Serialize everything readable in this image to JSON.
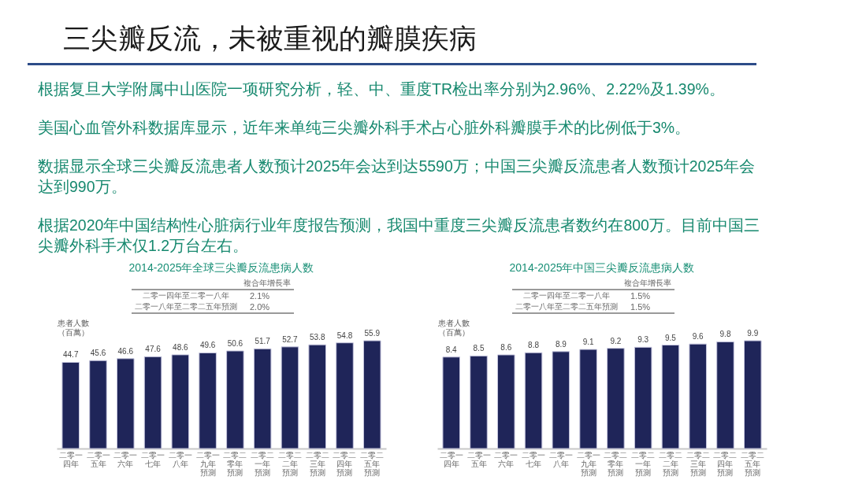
{
  "chart_data": [
    {
      "type": "other",
      "title": "三尖瓣反流，未被重视的瓣膜疾病",
      "annotations": [
        "根据复旦大学附属中山医院一项研究分析，轻、中、重度TR检出率分别为2.96%、2.22%及1.39%。",
        "美国心血管外科数据库显示，近年来单纯三尖瓣外科手术占心脏外科瓣膜手术的比例低于3%。",
        "数据显示全球三尖瓣反流患者人数预计2025年会达到达5590万；中国三尖瓣反流患者人数预计2025年会达到990万。",
        "根据2020年中国结构性心脏病行业年度报告预测，我国中重度三尖瓣反流患者数约在800万。目前中国三尖瓣外科手术仅1.2万台左右。"
      ]
    },
    {
      "type": "bar",
      "title": "2014-2025年全球三尖瓣反流患病人数",
      "ylabel": "患者人數（百萬）",
      "categories": [
        "二零一四年",
        "二零一五年",
        "二零一六年",
        "二零一七年",
        "二零一八年",
        "二零一九年預測",
        "二零二零年預測",
        "二零二一年預測",
        "二零二二年預測",
        "二零二三年預測",
        "二零二四年預測",
        "二零二五年預測"
      ],
      "values": [
        44.7,
        45.6,
        46.6,
        47.6,
        48.6,
        49.6,
        50.6,
        51.7,
        52.7,
        53.8,
        54.8,
        55.9
      ],
      "color": "#1f2559",
      "data_labels": true,
      "annotations": [
        "複合年增長率",
        "二零一四年至二零一八年",
        "2.1%",
        "二零一八年至二零二五年預測",
        "2.0%"
      ]
    },
    {
      "type": "bar",
      "title": "2014-2025年中国三尖瓣反流患病人数",
      "ylabel": "患者人數（百萬）",
      "categories": [
        "二零一四年",
        "二零一五年",
        "二零一六年",
        "二零一七年",
        "二零一八年",
        "二零一九年預測",
        "二零二零年預測",
        "二零二一年預測",
        "二零二二年預測",
        "二零二三年預測",
        "二零二四年預測",
        "二零二五年預測"
      ],
      "values": [
        8.4,
        8.5,
        8.6,
        8.8,
        8.9,
        9.1,
        9.2,
        9.3,
        9.5,
        9.6,
        9.8,
        9.9
      ],
      "color": "#1f2559",
      "data_labels": true,
      "annotations": [
        "複合年增長率",
        "二零一四年至二零一八年",
        "1.5%",
        "二零一八年至二零二五年預測",
        "1.5%"
      ]
    }
  ]
}
